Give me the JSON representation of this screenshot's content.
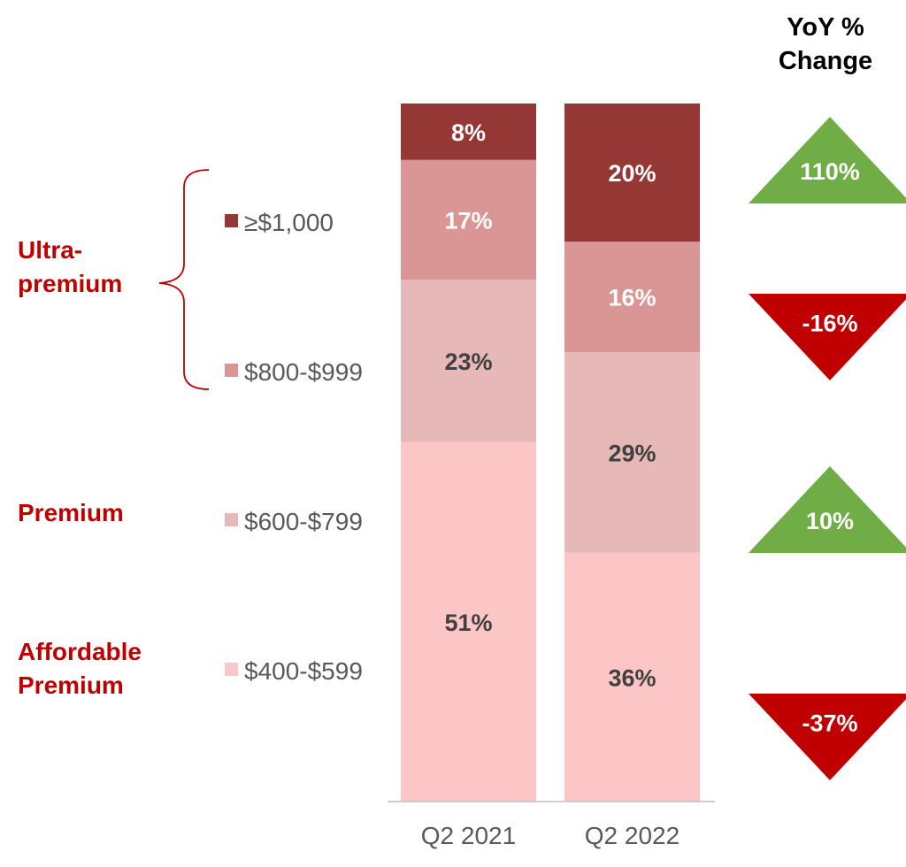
{
  "chart_data": {
    "type": "bar",
    "stacked": true,
    "normalized_percent": true,
    "categories": [
      "Q2 2021",
      "Q2 2022"
    ],
    "series": [
      {
        "name": "$400-$599",
        "values": [
          51,
          36
        ],
        "color": "#fcc6c6",
        "label_color": "#404040"
      },
      {
        "name": "$600-$799",
        "values": [
          23,
          29
        ],
        "color": "#e6b9b8",
        "label_color": "#404040"
      },
      {
        "name": "$800-$999",
        "values": [
          17,
          16
        ],
        "color": "#d99694",
        "label_color": "#ffffff"
      },
      {
        "name": "≥$1,000",
        "values": [
          8,
          20
        ],
        "color": "#953735",
        "label_color": "#ffffff"
      }
    ],
    "data_labels": [
      [
        "51%",
        "36%"
      ],
      [
        "23%",
        "29%"
      ],
      [
        "17%",
        "16%"
      ],
      [
        "8%",
        "20%"
      ]
    ],
    "legend_placement": "left",
    "groups": [
      {
        "name": "Ultra-premium",
        "lines": [
          "Ultra-",
          "premium"
        ],
        "series": [
          "≥$1,000",
          "$800-$999"
        ]
      },
      {
        "name": "Premium",
        "lines": [
          "Premium"
        ],
        "series": [
          "$600-$799"
        ]
      },
      {
        "name": "Affordable Premium",
        "lines": [
          "Affordable",
          "Premium"
        ],
        "series": [
          "$400-$599"
        ]
      }
    ],
    "yoy": {
      "title_lines": [
        "YoY %",
        "Change"
      ],
      "items": [
        {
          "series": "≥$1,000",
          "value": 110,
          "label": "110%",
          "direction": "up",
          "color": "#70ad47"
        },
        {
          "series": "$800-$999",
          "value": -16,
          "label": "-16%",
          "direction": "down",
          "color": "#c00000"
        },
        {
          "series": "$600-$799",
          "value": 10,
          "label": "10%",
          "direction": "up",
          "color": "#70ad47"
        },
        {
          "series": "$400-$599",
          "value": -37,
          "label": "-37%",
          "direction": "down",
          "color": "#c00000"
        }
      ]
    },
    "grid": false,
    "accent_color": "#c00000"
  }
}
